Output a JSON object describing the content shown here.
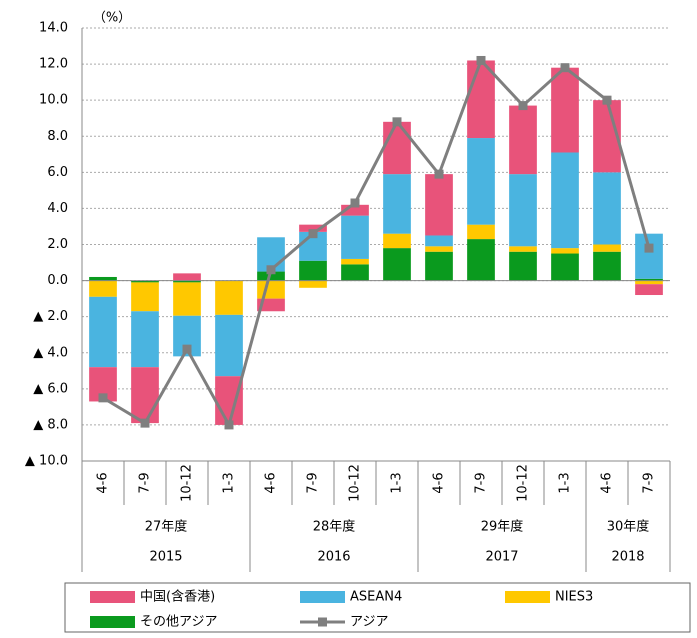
{
  "chart_data": {
    "type": "bar",
    "stacked": true,
    "unit_label": "（%）",
    "categories": [
      "4-6",
      "7-9",
      "10-12",
      "1-3",
      "4-6",
      "7-9",
      "10-12",
      "1-3",
      "4-6",
      "7-9",
      "10-12",
      "1-3",
      "4-6",
      "7-9"
    ],
    "groups": [
      {
        "label": "27年度",
        "year": "2015"
      },
      {
        "label": "28年度",
        "year": "2016"
      },
      {
        "label": "29年度",
        "year": "2017"
      },
      {
        "label": "30年度",
        "year": "2018"
      }
    ],
    "series": [
      {
        "name": "その他アジア",
        "color": "#0a9a1e",
        "values": [
          0.2,
          -0.1,
          -0.1,
          0,
          0.5,
          1.1,
          0.9,
          1.8,
          1.6,
          2.3,
          1.6,
          1.5,
          1.6,
          0.1
        ]
      },
      {
        "name": "NIES3",
        "color": "#ffc800",
        "values": [
          -0.9,
          -1.6,
          -1.85,
          -1.9,
          -1.0,
          -0.4,
          0.3,
          0.8,
          0.3,
          0.8,
          0.3,
          0.3,
          0.4,
          -0.2
        ]
      },
      {
        "name": "ASEAN4",
        "color": "#4ab4e0",
        "values": [
          -3.9,
          -3.1,
          -2.25,
          -3.4,
          1.9,
          1.6,
          2.4,
          3.3,
          0.6,
          4.8,
          4.0,
          5.3,
          4.0,
          2.5
        ]
      },
      {
        "name": "中国(含香港)",
        "color": "#e8537a",
        "values": [
          -1.9,
          -3.1,
          0.4,
          -2.7,
          -0.7,
          0.4,
          0.6,
          2.9,
          3.4,
          4.3,
          3.8,
          4.7,
          4.0,
          -0.6
        ]
      },
      {
        "name": "アジア",
        "type": "line",
        "color": "#7f7f7f",
        "values": [
          -6.5,
          -7.9,
          -3.8,
          -8.0,
          0.6,
          2.6,
          4.3,
          8.8,
          5.9,
          12.2,
          9.7,
          11.8,
          10.0,
          1.8
        ]
      }
    ],
    "ylim": [
      -10,
      14
    ],
    "yticks": [
      {
        "value": -10,
        "label": "▲ 10.0"
      },
      {
        "value": -8,
        "label": "▲ 8.0"
      },
      {
        "value": -6,
        "label": "▲ 6.0"
      },
      {
        "value": -4,
        "label": "▲ 4.0"
      },
      {
        "value": -2,
        "label": "▲ 2.0"
      },
      {
        "value": 0,
        "label": "0.0"
      },
      {
        "value": 2,
        "label": "2.0"
      },
      {
        "value": 4,
        "label": "4.0"
      },
      {
        "value": 6,
        "label": "6.0"
      },
      {
        "value": 8,
        "label": "8.0"
      },
      {
        "value": 10,
        "label": "10.0"
      },
      {
        "value": 12,
        "label": "12.0"
      },
      {
        "value": 14,
        "label": "14.0"
      }
    ],
    "grid": true
  }
}
